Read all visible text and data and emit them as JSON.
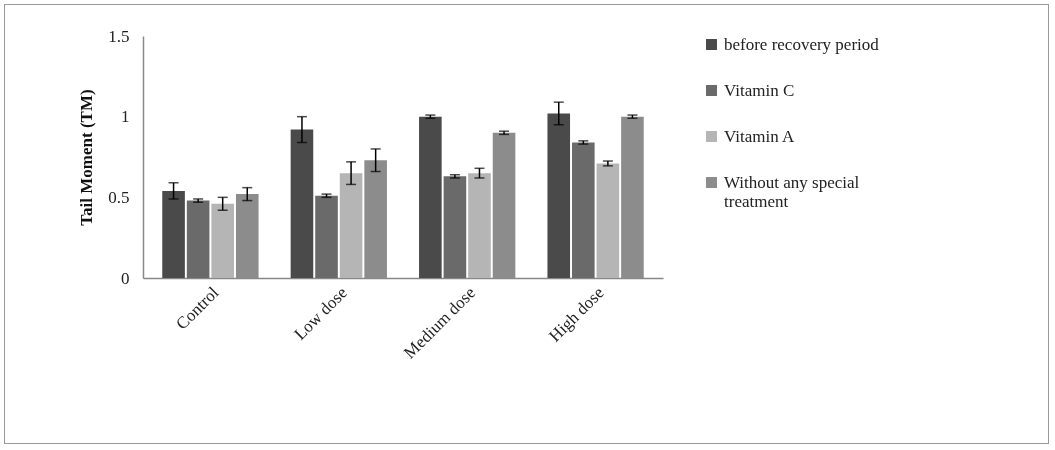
{
  "chart_data": {
    "type": "bar",
    "ylabel": "Tail Moment  (TM)",
    "categories": [
      "Control",
      "Low dose",
      "Medium dose",
      "High dose"
    ],
    "series": [
      {
        "name": "before recovery period",
        "color": "#4a4a4a",
        "values": [
          0.54,
          0.92,
          1.0,
          1.02
        ],
        "errors": [
          0.05,
          0.08,
          0.01,
          0.07
        ]
      },
      {
        "name": "Vitamin C",
        "color": "#6a6a6a",
        "values": [
          0.48,
          0.51,
          0.63,
          0.84
        ],
        "errors": [
          0.01,
          0.01,
          0.01,
          0.01
        ]
      },
      {
        "name": "Vitamin A",
        "color": "#b5b5b5",
        "values": [
          0.46,
          0.65,
          0.65,
          0.71
        ],
        "errors": [
          0.04,
          0.07,
          0.03,
          0.015
        ]
      },
      {
        "name": "Without  any special treatment",
        "color": "#8c8c8c",
        "values": [
          0.52,
          0.73,
          0.9,
          1.0
        ],
        "errors": [
          0.04,
          0.07,
          0.01,
          0.01
        ]
      }
    ],
    "ylim": [
      0,
      1.5
    ],
    "yticks": [
      0,
      0.5,
      1,
      1.5
    ],
    "grid": false,
    "legend": "right"
  }
}
